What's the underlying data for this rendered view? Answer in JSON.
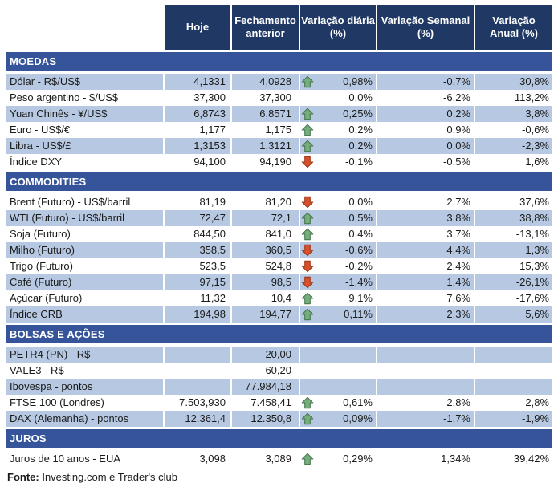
{
  "colors": {
    "header_bg": "#1F3864",
    "section_bg": "#36549A",
    "stripe_bg": "#B7C9E2",
    "text": "#1A1A1A",
    "up_arrow": "#77AC7C",
    "up_arrow_border": "#3D7244",
    "down_arrow": "#D4512B",
    "down_arrow_border": "#9E2F12"
  },
  "chart_data": {
    "type": "table",
    "columns": [
      "",
      "Hoje",
      "Fechamento\nanterior",
      "Variação diária\n(%)",
      "Variação Semanal\n(%)",
      "Variação\nAnual (%)"
    ],
    "sections": [
      {
        "title": "MOEDAS",
        "rows": [
          {
            "label": "Dólar - R$/US$",
            "hoje": "4,1331",
            "fechamento_anterior": "4,0928",
            "trend": "up",
            "variacao_diaria": "0,98%",
            "variacao_semanal": "-0,7%",
            "variacao_anual": "30,8%"
          },
          {
            "label": "Peso argentino - $/US$",
            "hoje": "37,300",
            "fechamento_anterior": "37,300",
            "trend": "none",
            "variacao_diaria": "0,0%",
            "variacao_semanal": "-6,2%",
            "variacao_anual": "113,2%"
          },
          {
            "label": "Yuan Chinês - ¥/US$",
            "hoje": "6,8743",
            "fechamento_anterior": "6,8571",
            "trend": "up",
            "variacao_diaria": "0,25%",
            "variacao_semanal": "0,2%",
            "variacao_anual": "3,8%"
          },
          {
            "label": "Euro - US$/€",
            "hoje": "1,177",
            "fechamento_anterior": "1,175",
            "trend": "up",
            "variacao_diaria": "0,2%",
            "variacao_semanal": "0,9%",
            "variacao_anual": "-0,6%"
          },
          {
            "label": "Libra - US$/£",
            "hoje": "1,3153",
            "fechamento_anterior": "1,3121",
            "trend": "up",
            "variacao_diaria": "0,2%",
            "variacao_semanal": "0,0%",
            "variacao_anual": "-2,3%"
          },
          {
            "label": "Índice DXY",
            "hoje": "94,100",
            "fechamento_anterior": "94,190",
            "trend": "down",
            "variacao_diaria": "-0,1%",
            "variacao_semanal": "-0,5%",
            "variacao_anual": "1,6%"
          }
        ]
      },
      {
        "title": "COMMODITIES",
        "rows": [
          {
            "label": "Brent (Futuro) - US$/barril",
            "hoje": "81,19",
            "fechamento_anterior": "81,20",
            "trend": "down",
            "variacao_diaria": "0,0%",
            "variacao_semanal": "2,7%",
            "variacao_anual": "37,6%"
          },
          {
            "label": "WTI (Futuro) - US$/barril",
            "hoje": "72,47",
            "fechamento_anterior": "72,1",
            "trend": "up",
            "variacao_diaria": "0,5%",
            "variacao_semanal": "3,8%",
            "variacao_anual": "38,8%"
          },
          {
            "label": "Soja (Futuro)",
            "hoje": "844,50",
            "fechamento_anterior": "841,0",
            "trend": "up",
            "variacao_diaria": "0,4%",
            "variacao_semanal": "3,7%",
            "variacao_anual": "-13,1%"
          },
          {
            "label": "Milho (Futuro)",
            "hoje": "358,5",
            "fechamento_anterior": "360,5",
            "trend": "down",
            "variacao_diaria": "-0,6%",
            "variacao_semanal": "4,4%",
            "variacao_anual": "1,3%"
          },
          {
            "label": "Trigo (Futuro)",
            "hoje": "523,5",
            "fechamento_anterior": "524,8",
            "trend": "down",
            "variacao_diaria": "-0,2%",
            "variacao_semanal": "2,4%",
            "variacao_anual": "15,3%"
          },
          {
            "label": "Café (Futuro)",
            "hoje": "97,15",
            "fechamento_anterior": "98,5",
            "trend": "down",
            "variacao_diaria": "-1,4%",
            "variacao_semanal": "1,4%",
            "variacao_anual": "-26,1%"
          },
          {
            "label": "Açúcar (Futuro)",
            "hoje": "11,32",
            "fechamento_anterior": "10,4",
            "trend": "up",
            "variacao_diaria": "9,1%",
            "variacao_semanal": "7,6%",
            "variacao_anual": "-17,6%"
          },
          {
            "label": "Índice CRB",
            "hoje": "194,98",
            "fechamento_anterior": "194,77",
            "trend": "up",
            "variacao_diaria": "0,11%",
            "variacao_semanal": "2,3%",
            "variacao_anual": "5,6%"
          }
        ]
      },
      {
        "title": "BOLSAS E AÇÕES",
        "rows": [
          {
            "label": "PETR4 (PN) - R$",
            "hoje": "",
            "fechamento_anterior": "20,00",
            "trend": "none",
            "variacao_diaria": "",
            "variacao_semanal": "",
            "variacao_anual": ""
          },
          {
            "label": "VALE3 - R$",
            "hoje": "",
            "fechamento_anterior": "60,20",
            "trend": "none",
            "variacao_diaria": "",
            "variacao_semanal": "",
            "variacao_anual": ""
          },
          {
            "label": "Ibovespa - pontos",
            "hoje": "",
            "fechamento_anterior": "77.984,18",
            "trend": "none",
            "variacao_diaria": "",
            "variacao_semanal": "",
            "variacao_anual": ""
          },
          {
            "label": "FTSE 100 (Londres)",
            "hoje": "7.503,930",
            "fechamento_anterior": "7.458,41",
            "trend": "up",
            "variacao_diaria": "0,61%",
            "variacao_semanal": "2,8%",
            "variacao_anual": "2,8%"
          },
          {
            "label": "DAX (Alemanha) - pontos",
            "hoje": "12.361,4",
            "fechamento_anterior": "12.350,8",
            "trend": "up",
            "variacao_diaria": "0,09%",
            "variacao_semanal": "-1,7%",
            "variacao_anual": "-1,9%"
          }
        ]
      },
      {
        "title": "JUROS",
        "rows": [
          {
            "label": "Juros de 10 anos - EUA",
            "hoje": "3,098",
            "fechamento_anterior": "3,089",
            "trend": "up",
            "variacao_diaria": "0,29%",
            "variacao_semanal": "1,34%",
            "variacao_anual": "39,42%"
          }
        ]
      }
    ],
    "legend": {
      "up_arrow": "rise vs previous close",
      "down_arrow": "fall vs previous close"
    }
  },
  "footer": {
    "bold": "Fonte:",
    "text": "Investing.com e Trader's club"
  }
}
